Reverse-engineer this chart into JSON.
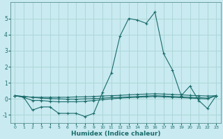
{
  "xlabel": "Humidex (Indice chaleur)",
  "background_color": "#c8eaf0",
  "grid_color": "#aad4d4",
  "line_color": "#1a6b6b",
  "xlim": [
    -0.5,
    23.5
  ],
  "ylim": [
    -1.5,
    6.0
  ],
  "yticks": [
    -1,
    0,
    1,
    2,
    3,
    4,
    5
  ],
  "xticks": [
    0,
    1,
    2,
    3,
    4,
    5,
    6,
    7,
    8,
    9,
    10,
    11,
    12,
    13,
    14,
    15,
    16,
    17,
    18,
    19,
    20,
    21,
    22,
    23
  ],
  "series": [
    {
      "x": [
        0,
        1,
        2,
        3,
        4,
        5,
        6,
        7,
        8,
        9,
        10,
        11,
        12,
        13,
        14,
        15,
        16,
        17,
        18,
        19,
        20,
        21,
        22,
        23
      ],
      "y": [
        0.2,
        0.1,
        -0.7,
        -0.5,
        -0.5,
        -0.9,
        -0.9,
        -0.9,
        -1.1,
        -0.9,
        0.4,
        1.6,
        3.9,
        5.0,
        4.9,
        4.7,
        5.4,
        2.8,
        1.8,
        0.2,
        0.8,
        -0.1,
        -0.6,
        0.2
      ]
    },
    {
      "x": [
        0,
        1,
        2,
        3,
        4,
        5,
        6,
        7,
        8,
        9,
        10,
        11,
        12,
        13,
        14,
        15,
        16,
        17,
        18,
        19,
        20,
        21,
        22,
        23
      ],
      "y": [
        0.2,
        0.15,
        0.1,
        0.1,
        0.1,
        0.1,
        0.1,
        0.12,
        0.13,
        0.15,
        0.18,
        0.2,
        0.22,
        0.25,
        0.28,
        0.3,
        0.32,
        0.3,
        0.28,
        0.25,
        0.22,
        0.2,
        0.18,
        0.2
      ]
    },
    {
      "x": [
        0,
        1,
        2,
        3,
        4,
        5,
        6,
        7,
        8,
        9,
        10,
        11,
        12,
        13,
        14,
        15,
        16,
        17,
        18,
        19,
        20,
        21,
        22,
        23
      ],
      "y": [
        0.2,
        0.15,
        0.1,
        0.05,
        0.02,
        0.0,
        -0.02,
        -0.02,
        0.0,
        0.02,
        0.05,
        0.08,
        0.1,
        0.12,
        0.15,
        0.18,
        0.2,
        0.18,
        0.15,
        0.12,
        0.1,
        0.08,
        0.05,
        0.2
      ]
    },
    {
      "x": [
        0,
        1,
        2,
        3,
        4,
        5,
        6,
        7,
        8,
        9,
        10,
        11,
        12,
        13,
        14,
        15,
        16,
        17,
        18,
        19,
        20,
        21,
        22,
        23
      ],
      "y": [
        0.2,
        0.1,
        -0.1,
        -0.1,
        -0.15,
        -0.18,
        -0.18,
        -0.18,
        -0.15,
        -0.1,
        -0.05,
        0.0,
        0.05,
        0.08,
        0.1,
        0.12,
        0.15,
        0.12,
        0.1,
        0.08,
        0.05,
        0.02,
        0.0,
        0.2
      ]
    }
  ]
}
